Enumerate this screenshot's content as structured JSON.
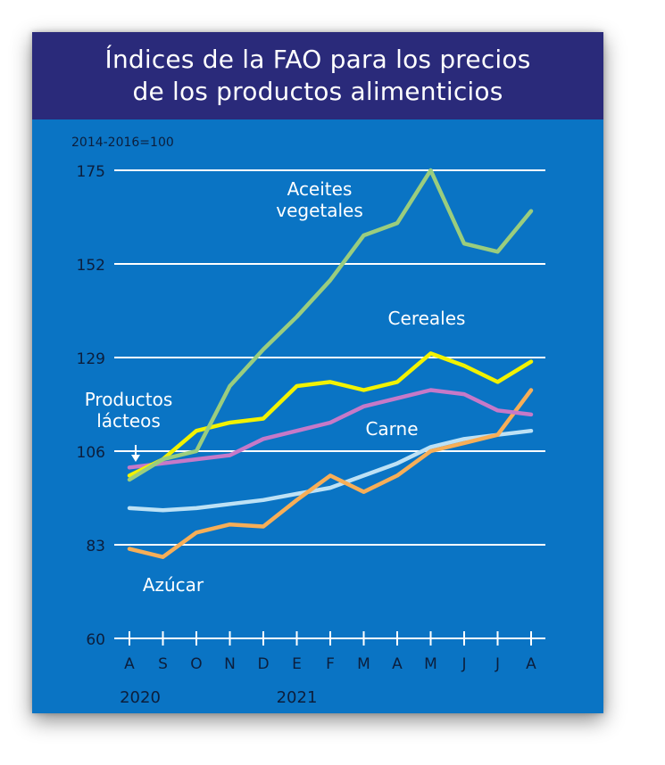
{
  "chart_data": {
    "type": "line",
    "title_lines": [
      "Índices de la FAO para los precios",
      "de los productos alimenticios"
    ],
    "unit_note": "2014-2016=100",
    "categories": [
      "A",
      "S",
      "O",
      "N",
      "D",
      "E",
      "F",
      "M",
      "A",
      "M",
      "J",
      "J",
      "A"
    ],
    "year_labels": [
      {
        "label": "2020",
        "index": 0
      },
      {
        "label": "2021",
        "index": 5
      }
    ],
    "ylim": [
      60,
      175
    ],
    "yticks": [
      60,
      83,
      106,
      129,
      152,
      175
    ],
    "grid": true,
    "series": [
      {
        "name": "Aceites vegetales",
        "label_lines": [
          "Aceites",
          "vegetales"
        ],
        "color": "#9acd7e",
        "values": [
          99,
          104,
          106,
          122,
          131,
          139,
          148,
          159,
          162,
          175,
          157,
          155,
          165
        ]
      },
      {
        "name": "Cereales",
        "label_lines": [
          "Cereales"
        ],
        "color": "#f2f200",
        "values": [
          100,
          104,
          111,
          113,
          114,
          122,
          123,
          121,
          123,
          130,
          127,
          123,
          128
        ]
      },
      {
        "name": "Productos lácteos",
        "label_lines": [
          "Productos",
          "lácteos"
        ],
        "color": "#c679c8",
        "values": [
          102,
          103,
          104,
          105,
          109,
          111,
          113,
          117,
          119,
          121,
          120,
          116,
          115
        ]
      },
      {
        "name": "Carne",
        "label_lines": [
          "Carne"
        ],
        "color": "#bde1f5",
        "values": [
          92,
          91.5,
          92,
          93,
          94,
          95.5,
          97,
          100,
          103,
          107,
          109,
          110,
          111
        ]
      },
      {
        "name": "Azúcar",
        "label_lines": [
          "Azúcar"
        ],
        "color": "#f7ae57",
        "values": [
          82,
          80,
          86,
          88,
          87.5,
          94,
          100,
          96,
          100,
          106,
          108,
          110,
          121
        ]
      }
    ]
  },
  "colors": {
    "background": "#0a74c4",
    "header": "#2a2a7a",
    "grid": "#ffffff",
    "text_dark": "#0c1e3c"
  }
}
